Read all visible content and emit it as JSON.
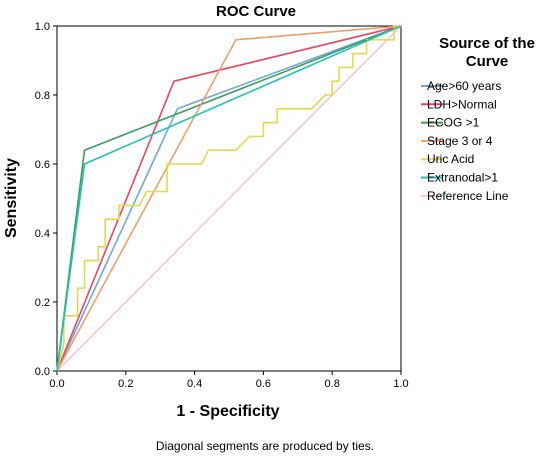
{
  "chart_data": {
    "type": "line",
    "title": "ROC Curve",
    "xlabel": "1 - Specificity",
    "ylabel": "Sensitivity",
    "xlim": [
      0,
      1
    ],
    "ylim": [
      0,
      1
    ],
    "xticks": [
      "0.0",
      "0.2",
      "0.4",
      "0.6",
      "0.8",
      "1.0"
    ],
    "yticks": [
      "0.0",
      "0.2",
      "0.4",
      "0.6",
      "0.8",
      "1.0"
    ],
    "grid": false,
    "legend": {
      "title": "Source of the Curve",
      "title_lines": [
        "Source of the",
        "Curve"
      ],
      "placement": "right"
    },
    "footnote": "Diagonal segments are produced by ties.",
    "series": [
      {
        "name": "Age>60 years",
        "color": "#6fa8d6",
        "points": [
          [
            0,
            0
          ],
          [
            0.35,
            0.76
          ],
          [
            1,
            1
          ]
        ]
      },
      {
        "name": "LDH>Normal",
        "color": "#e8475f",
        "points": [
          [
            0,
            0
          ],
          [
            0.34,
            0.84
          ],
          [
            1,
            1
          ]
        ]
      },
      {
        "name": "ECOG >1",
        "color": "#3b9b5b",
        "points": [
          [
            0,
            0
          ],
          [
            0.08,
            0.64
          ],
          [
            1,
            1
          ]
        ]
      },
      {
        "name": "Stage 3 or 4",
        "color": "#f29c6b",
        "points": [
          [
            0,
            0
          ],
          [
            0.52,
            0.96
          ],
          [
            1,
            1
          ]
        ]
      },
      {
        "name": "Uric Acid",
        "color": "#e6d84a",
        "points": [
          [
            0,
            0
          ],
          [
            0.02,
            0.08
          ],
          [
            0.02,
            0.16
          ],
          [
            0.06,
            0.16
          ],
          [
            0.06,
            0.24
          ],
          [
            0.08,
            0.24
          ],
          [
            0.08,
            0.32
          ],
          [
            0.12,
            0.32
          ],
          [
            0.12,
            0.36
          ],
          [
            0.14,
            0.36
          ],
          [
            0.14,
            0.44
          ],
          [
            0.18,
            0.44
          ],
          [
            0.18,
            0.48
          ],
          [
            0.24,
            0.48
          ],
          [
            0.26,
            0.52
          ],
          [
            0.32,
            0.52
          ],
          [
            0.32,
            0.6
          ],
          [
            0.42,
            0.6
          ],
          [
            0.44,
            0.64
          ],
          [
            0.52,
            0.64
          ],
          [
            0.56,
            0.68
          ],
          [
            0.6,
            0.68
          ],
          [
            0.6,
            0.72
          ],
          [
            0.64,
            0.72
          ],
          [
            0.64,
            0.76
          ],
          [
            0.74,
            0.76
          ],
          [
            0.78,
            0.8
          ],
          [
            0.8,
            0.8
          ],
          [
            0.8,
            0.84
          ],
          [
            0.82,
            0.84
          ],
          [
            0.82,
            0.88
          ],
          [
            0.86,
            0.88
          ],
          [
            0.86,
            0.92
          ],
          [
            0.9,
            0.92
          ],
          [
            0.9,
            0.96
          ],
          [
            0.98,
            0.96
          ],
          [
            0.98,
            1
          ],
          [
            1,
            1
          ]
        ]
      },
      {
        "name": "Extranodal>1",
        "color": "#1fc4b4",
        "points": [
          [
            0,
            0
          ],
          [
            0.08,
            0.6
          ],
          [
            1,
            1
          ]
        ]
      },
      {
        "name": "Reference Line",
        "color": "#f7c9d1",
        "points": [
          [
            0,
            0
          ],
          [
            1,
            1
          ]
        ]
      }
    ]
  }
}
